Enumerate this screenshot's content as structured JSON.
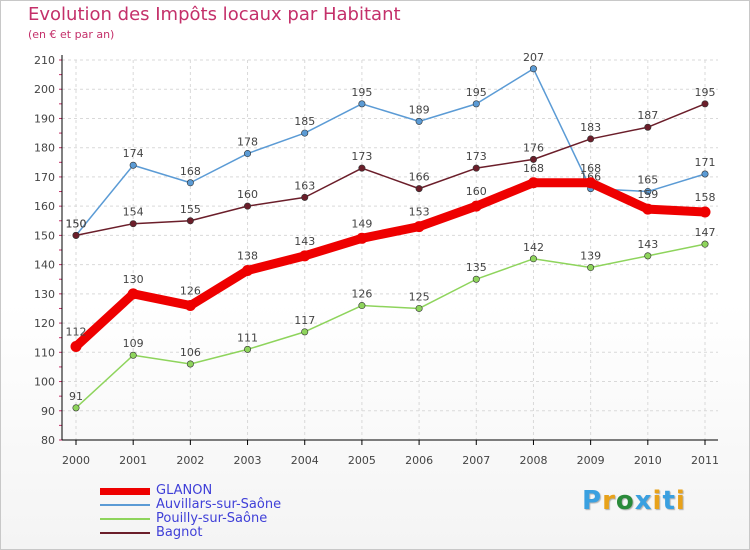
{
  "chart_data": {
    "type": "line",
    "title": "Evolution des Impôts locaux par Habitant",
    "subtitle": "(en € et par an)",
    "x": [
      "2000",
      "2001",
      "2002",
      "2003",
      "2004",
      "2005",
      "2006",
      "2007",
      "2008",
      "2009",
      "2010",
      "2011"
    ],
    "ylim": [
      80,
      210
    ],
    "yticks": [
      80,
      90,
      100,
      110,
      120,
      130,
      140,
      150,
      160,
      170,
      180,
      190,
      200,
      210
    ],
    "grid": true,
    "series": [
      {
        "name": "Auvillars-sur-Saône",
        "color": "#5b9bd5",
        "values": [
          150,
          174,
          168,
          178,
          185,
          195,
          189,
          195,
          207,
          166,
          165,
          171
        ]
      },
      {
        "name": "Bagnot",
        "color": "#6b1e2a",
        "values": [
          150,
          154,
          155,
          160,
          163,
          173,
          166,
          173,
          176,
          183,
          187,
          195
        ]
      },
      {
        "name": "Pouilly-sur-Saône",
        "color": "#8ed45c",
        "values": [
          91,
          109,
          106,
          111,
          117,
          126,
          125,
          135,
          142,
          139,
          143,
          147
        ]
      },
      {
        "name": "GLANON",
        "color": "#ee0000",
        "values": [
          112,
          130,
          126,
          138,
          143,
          149,
          153,
          160,
          168,
          168,
          159,
          158
        ]
      }
    ],
    "legend": [
      {
        "name": "GLANON",
        "color": "#ee0000"
      },
      {
        "name": "Auvillars-sur-Saône",
        "color": "#5b9bd5"
      },
      {
        "name": "Pouilly-sur-Saône",
        "color": "#8ed45c"
      },
      {
        "name": "Bagnot",
        "color": "#6b1e2a"
      }
    ]
  },
  "logo": {
    "letters": [
      "P",
      "r",
      "o",
      "x",
      "i",
      "t",
      "i"
    ],
    "colors": [
      "#3aa0e0",
      "#e8a21a",
      "#2a8a3a",
      "#3aa0e0",
      "#e8a21a",
      "#3aa0e0",
      "#e8a21a"
    ]
  }
}
